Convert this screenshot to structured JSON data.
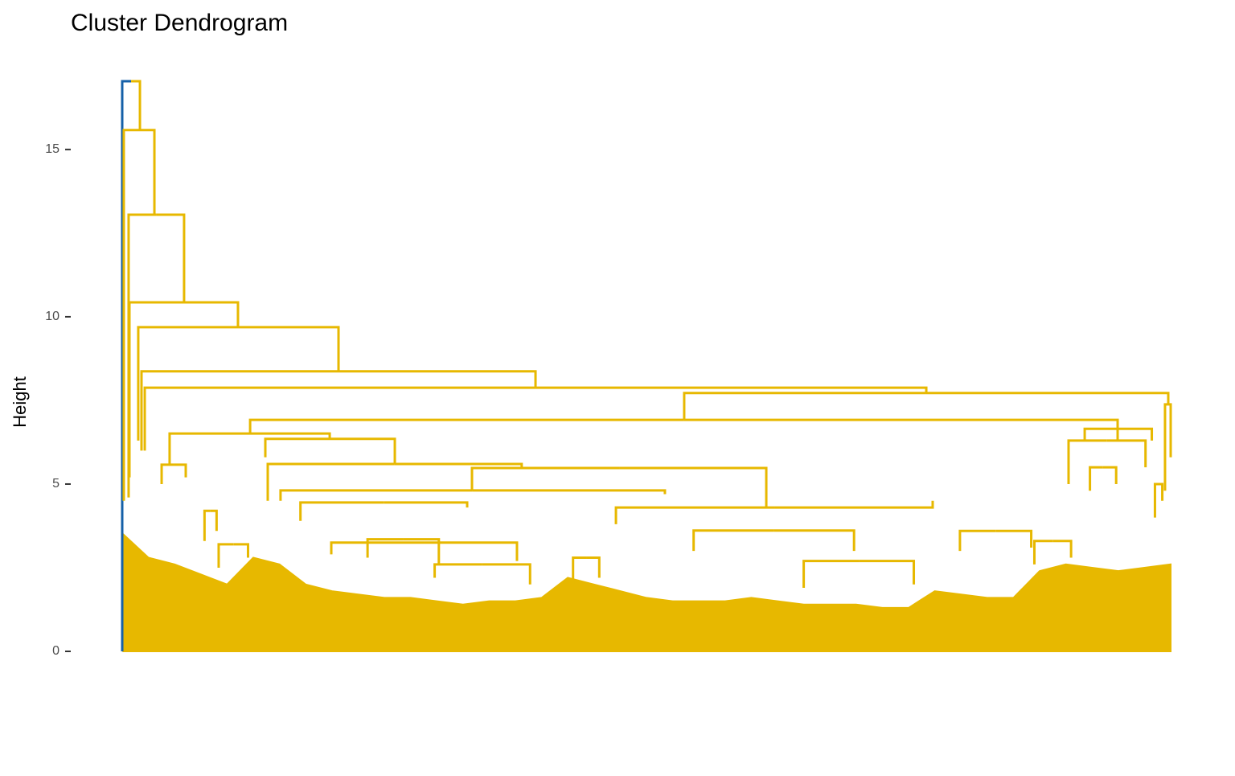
{
  "chart_data": {
    "type": "dendrogram",
    "title": "Cluster Dendrogram",
    "y_label": "Height",
    "ylim": [
      0,
      17.04
    ],
    "yticks": [
      0,
      5,
      10,
      15
    ],
    "xlim": [
      0,
      1000
    ],
    "color": "#E7B800",
    "highlight": {
      "color": "#1560A8",
      "leaves": [
        0,
        0.5
      ]
    },
    "merges": [
      {
        "left": 0,
        "right": 16.9,
        "height": 17.04,
        "left_base": 0,
        "right_base": 15.58
      },
      {
        "left": 1.5,
        "right": 30.7,
        "height": 15.58,
        "left_base": 4.5,
        "right_base": 13.05
      },
      {
        "left": 6.1,
        "right": 59,
        "height": 13.05,
        "left_base": 4.6,
        "right_base": 10.43
      },
      {
        "left": 6.9,
        "right": 110.4,
        "height": 10.43,
        "left_base": 5.2,
        "right_base": 9.69
      },
      {
        "left": 15.3,
        "right": 206.3,
        "height": 9.69,
        "left_base": 6.3,
        "right_base": 8.37
      },
      {
        "left": 18.4,
        "right": 394.2,
        "height": 8.37,
        "left_base": 6.0,
        "right_base": 7.88
      },
      {
        "left": 21.5,
        "right": 766.9,
        "height": 7.88,
        "left_base": 6.0,
        "right_base": 7.72
      },
      {
        "left": 536,
        "right": 997.7,
        "height": 7.72,
        "left_base": 6.92,
        "right_base": 7.38
      },
      {
        "left": 122,
        "right": 949.4,
        "height": 6.92,
        "left_base": 6.51,
        "right_base": 6.3
      },
      {
        "left": 45.2,
        "right": 197.9,
        "height": 6.51,
        "left_base": 5.58,
        "right_base": 6.35
      },
      {
        "left": 136.5,
        "right": 260,
        "height": 6.35,
        "left_base": 5.8,
        "right_base": 5.6
      },
      {
        "left": 138.8,
        "right": 381,
        "height": 5.6,
        "left_base": 4.5,
        "right_base": 5.48
      },
      {
        "left": 333.6,
        "right": 614.3,
        "height": 5.48,
        "left_base": 4.81,
        "right_base": 4.3
      },
      {
        "left": 151,
        "right": 517.6,
        "height": 4.81,
        "left_base": 4.5,
        "right_base": 4.7
      },
      {
        "left": 170,
        "right": 329,
        "height": 4.45,
        "left_base": 3.9,
        "right_base": 4.3
      },
      {
        "left": 470.9,
        "right": 773,
        "height": 4.3,
        "left_base": 3.8,
        "right_base": 4.5
      },
      {
        "left": 902.6,
        "right": 976,
        "height": 6.3,
        "left_base": 5.0,
        "right_base": 5.5
      },
      {
        "left": 918,
        "right": 982,
        "height": 6.65,
        "left_base": 6.3,
        "right_base": 6.3
      },
      {
        "left": 923,
        "right": 948,
        "height": 5.5,
        "left_base": 4.8,
        "right_base": 5.0
      },
      {
        "left": 985,
        "right": 992,
        "height": 5.0,
        "left_base": 4.0,
        "right_base": 4.5
      },
      {
        "left": 994.6,
        "right": 1000,
        "height": 7.38,
        "left_base": 4.8,
        "right_base": 5.8
      },
      {
        "left": 37.6,
        "right": 60.6,
        "height": 5.58,
        "left_base": 5.0,
        "right_base": 5.2
      },
      {
        "left": 545,
        "right": 698,
        "height": 3.61,
        "left_base": 3.0,
        "right_base": 3.0
      },
      {
        "left": 199.4,
        "right": 376.5,
        "height": 3.25,
        "left_base": 2.9,
        "right_base": 2.7
      },
      {
        "left": 234,
        "right": 302,
        "height": 3.35,
        "left_base": 2.8,
        "right_base": 2.6
      },
      {
        "left": 799,
        "right": 867,
        "height": 3.6,
        "left_base": 3.0,
        "right_base": 3.1
      },
      {
        "left": 78.5,
        "right": 90,
        "height": 4.2,
        "left_base": 3.3,
        "right_base": 3.6
      },
      {
        "left": 92,
        "right": 120,
        "height": 3.2,
        "left_base": 2.5,
        "right_base": 2.8
      },
      {
        "left": 298,
        "right": 389,
        "height": 2.6,
        "left_base": 2.2,
        "right_base": 2.0
      },
      {
        "left": 650,
        "right": 755,
        "height": 2.7,
        "left_base": 1.9,
        "right_base": 2.0
      },
      {
        "left": 430,
        "right": 455,
        "height": 2.8,
        "left_base": 2.0,
        "right_base": 2.2
      },
      {
        "left": 870,
        "right": 905,
        "height": 3.3,
        "left_base": 2.6,
        "right_base": 2.8
      }
    ],
    "envelope": {
      "x": [
        1,
        25,
        50,
        75,
        100,
        125,
        150,
        175,
        200,
        225,
        250,
        275,
        300,
        325,
        350,
        375,
        400,
        425,
        450,
        475,
        500,
        525,
        550,
        575,
        600,
        625,
        650,
        675,
        700,
        725,
        750,
        775,
        800,
        825,
        850,
        875,
        900,
        925,
        950,
        975,
        1000
      ],
      "values": [
        3.5,
        2.8,
        2.6,
        2.3,
        2.0,
        2.8,
        2.6,
        2.0,
        1.8,
        1.7,
        1.6,
        1.6,
        1.5,
        1.4,
        1.5,
        1.5,
        1.6,
        2.2,
        2.0,
        1.8,
        1.6,
        1.5,
        1.5,
        1.5,
        1.6,
        1.5,
        1.4,
        1.4,
        1.4,
        1.3,
        1.3,
        1.8,
        1.7,
        1.6,
        1.6,
        2.4,
        2.6,
        2.5,
        2.4,
        2.5,
        2.6
      ]
    }
  }
}
